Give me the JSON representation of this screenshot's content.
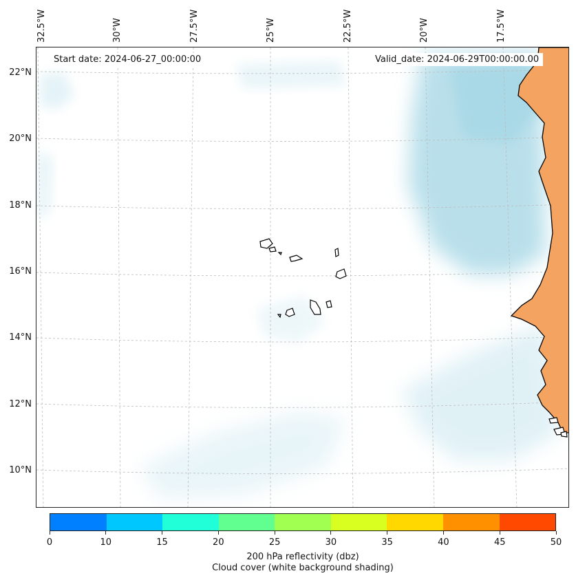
{
  "map": {
    "start_date": "Start date: 2024-06-27_00:00:00",
    "valid_date": "Valid_date: 2024-06-29T00:00:00.00",
    "lon_labels": [
      "32.5°W",
      "30°W",
      "27.5°W",
      "25°W",
      "22.5°W",
      "20°W",
      "17.5°W"
    ],
    "lat_labels": [
      "22°N",
      "20°N",
      "18°N",
      "16°N",
      "14°N",
      "12°N",
      "10°N"
    ],
    "colors": {
      "land": "#f4a460",
      "cloud": "#a8d8e6",
      "coastline": "#000000",
      "gridline": "#bbbbbb"
    }
  },
  "colorbar": {
    "label": "200 hPa reflectivity (dbz)",
    "sublabel": "Cloud cover (white background shading)",
    "ticks": [
      "0",
      "10",
      "15",
      "20",
      "25",
      "30",
      "35",
      "40",
      "45",
      "50"
    ],
    "colors": [
      "#0080ff",
      "#00c8ff",
      "#20ffd8",
      "#60ff90",
      "#a0ff50",
      "#d8ff20",
      "#ffd800",
      "#ff9000",
      "#ff4800"
    ]
  }
}
